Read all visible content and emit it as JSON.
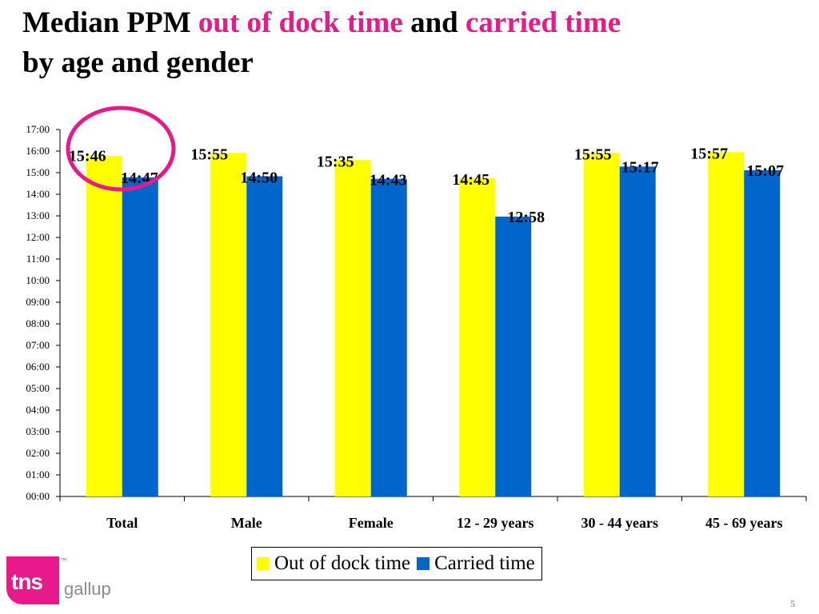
{
  "title": {
    "part1": "Median PPM ",
    "part2": "out of dock time",
    "part3": " and ",
    "part4": "carried time",
    "part5": "by age and gender"
  },
  "chart_data": {
    "type": "bar",
    "categories": [
      "Total",
      "Male",
      "Female",
      "12 - 29 years",
      "30 - 44 years",
      "45 - 69 years"
    ],
    "series": [
      {
        "name": "Out of dock time",
        "color": "#ffff00",
        "values": [
          "15:46",
          "15:55",
          "15:35",
          "14:45",
          "15:55",
          "15:57"
        ]
      },
      {
        "name": "Carried time",
        "color": "#0066cc",
        "values": [
          "14:47",
          "14:50",
          "14:43",
          "12:58",
          "15:17",
          "15:07"
        ]
      }
    ],
    "y_ticks": [
      "00:00",
      "01:00",
      "02:00",
      "03:00",
      "04:00",
      "05:00",
      "06:00",
      "07:00",
      "08:00",
      "09:00",
      "10:00",
      "11:00",
      "12:00",
      "13:00",
      "14:00",
      "15:00",
      "16:00",
      "17:00"
    ],
    "ylim": [
      "00:00",
      "17:00"
    ],
    "grid": false,
    "legend_position": "bottom",
    "annotation": "circle highlighting the Total category"
  },
  "logo": {
    "mark_text": "tns",
    "tm": "™",
    "text": "gallup"
  },
  "page_number": "5",
  "colors": {
    "accent": "#e8198b",
    "yellow": "#ffff00",
    "blue": "#0066cc"
  }
}
